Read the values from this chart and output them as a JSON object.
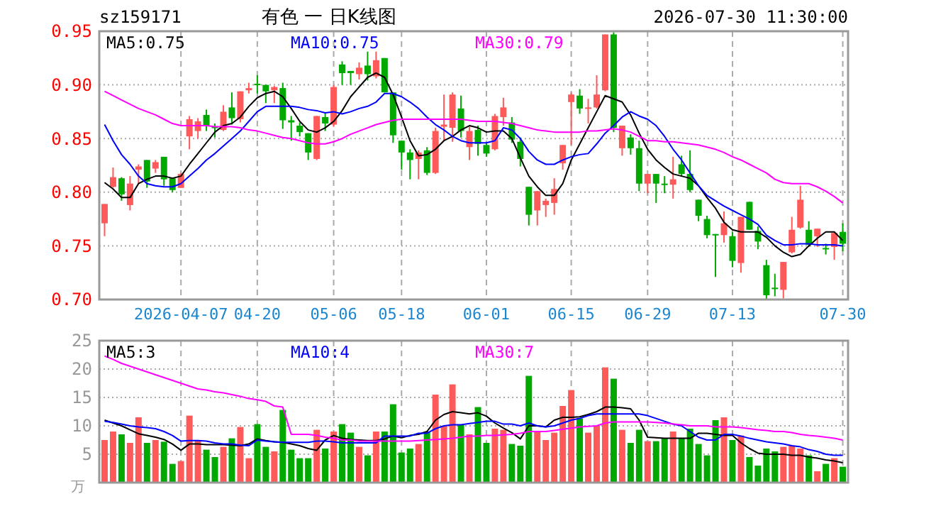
{
  "chart_data": [
    {
      "type": "candlestick",
      "title": "有色 一 日K线图",
      "annotations": [
        "sz159171",
        "2026-07-30 11:30:00"
      ],
      "categories": [
        null,
        null,
        null,
        null,
        null,
        null,
        null,
        null,
        null,
        "2026-04-07",
        null,
        null,
        null,
        null,
        null,
        null,
        null,
        null,
        "04-20",
        null,
        null,
        null,
        null,
        null,
        null,
        null,
        null,
        "05-06",
        null,
        null,
        null,
        null,
        null,
        null,
        null,
        "05-18",
        null,
        null,
        null,
        null,
        null,
        null,
        null,
        null,
        null,
        "06-01",
        null,
        null,
        null,
        null,
        null,
        null,
        null,
        null,
        null,
        "06-15",
        null,
        null,
        null,
        null,
        null,
        null,
        null,
        null,
        "06-29",
        null,
        null,
        null,
        null,
        null,
        null,
        null,
        null,
        null,
        "07-13",
        null,
        null,
        null,
        null,
        null,
        null,
        null,
        null,
        null,
        null,
        null,
        null,
        "07-30"
      ],
      "ohlc": [
        [
          0.771,
          0.789,
          0.759,
          0.789
        ],
        [
          0.805,
          0.823,
          0.804,
          0.814
        ],
        [
          0.813,
          0.814,
          0.792,
          0.798
        ],
        [
          0.788,
          0.815,
          0.783,
          0.808
        ],
        [
          0.821,
          0.826,
          0.808,
          0.824
        ],
        [
          0.83,
          0.83,
          0.804,
          0.81
        ],
        [
          0.822,
          0.83,
          0.818,
          0.828
        ],
        [
          0.833,
          0.833,
          0.806,
          0.812
        ],
        [
          0.813,
          0.813,
          0.8,
          0.802
        ],
        [
          0.804,
          0.818,
          0.804,
          0.817
        ],
        [
          0.852,
          0.871,
          0.84,
          0.868
        ],
        [
          0.857,
          0.869,
          0.85,
          0.866
        ],
        [
          0.872,
          0.877,
          0.857,
          0.862
        ],
        [
          0.861,
          0.864,
          0.851,
          0.86
        ],
        [
          0.858,
          0.881,
          0.857,
          0.875
        ],
        [
          0.879,
          0.893,
          0.863,
          0.869
        ],
        [
          0.868,
          0.894,
          0.865,
          0.894
        ],
        [
          0.895,
          0.902,
          0.892,
          0.897
        ],
        [
          0.901,
          0.909,
          0.892,
          0.9
        ],
        [
          0.9,
          0.9,
          0.883,
          0.894
        ],
        [
          0.895,
          0.899,
          0.883,
          0.898
        ],
        [
          0.897,
          0.902,
          0.859,
          0.867
        ],
        [
          0.867,
          0.871,
          0.848,
          0.865
        ],
        [
          0.862,
          0.865,
          0.852,
          0.856
        ],
        [
          0.855,
          0.855,
          0.83,
          0.837
        ],
        [
          0.831,
          0.871,
          0.83,
          0.871
        ],
        [
          0.87,
          0.874,
          0.857,
          0.864
        ],
        [
          0.863,
          0.9,
          0.861,
          0.898
        ],
        [
          0.919,
          0.922,
          0.9,
          0.911
        ],
        [
          0.913,
          0.913,
          0.9,
          0.911
        ],
        [
          0.91,
          0.921,
          0.905,
          0.916
        ],
        [
          0.918,
          0.931,
          0.904,
          0.91
        ],
        [
          0.908,
          0.931,
          0.906,
          0.923
        ],
        [
          0.925,
          0.925,
          0.893,
          0.893
        ],
        [
          0.893,
          0.893,
          0.846,
          0.853
        ],
        [
          0.848,
          0.848,
          0.821,
          0.837
        ],
        [
          0.837,
          0.84,
          0.812,
          0.83
        ],
        [
          0.831,
          0.839,
          0.812,
          0.837
        ],
        [
          0.839,
          0.842,
          0.816,
          0.818
        ],
        [
          0.818,
          0.86,
          0.817,
          0.857
        ],
        [
          0.861,
          0.891,
          0.848,
          0.863
        ],
        [
          0.86,
          0.893,
          0.847,
          0.891
        ],
        [
          0.878,
          0.89,
          0.851,
          0.857
        ],
        [
          0.842,
          0.861,
          0.83,
          0.857
        ],
        [
          0.858,
          0.862,
          0.834,
          0.845
        ],
        [
          0.844,
          0.846,
          0.833,
          0.836
        ],
        [
          0.84,
          0.873,
          0.839,
          0.871
        ],
        [
          0.87,
          0.888,
          0.862,
          0.879
        ],
        [
          0.865,
          0.87,
          0.846,
          0.849
        ],
        [
          0.847,
          0.851,
          0.824,
          0.831
        ],
        [
          0.805,
          0.805,
          0.769,
          0.779
        ],
        [
          0.783,
          0.801,
          0.769,
          0.801
        ],
        [
          0.788,
          0.794,
          0.777,
          0.792
        ],
        [
          0.79,
          0.813,
          0.779,
          0.803
        ],
        [
          0.827,
          0.844,
          0.821,
          0.844
        ],
        [
          0.884,
          0.893,
          0.844,
          0.891
        ],
        [
          0.89,
          0.896,
          0.873,
          0.878
        ],
        [
          0.878,
          0.887,
          0.864,
          0.879
        ],
        [
          0.879,
          0.909,
          0.878,
          0.891
        ],
        [
          0.895,
          0.947,
          0.894,
          0.947
        ],
        [
          0.947,
          0.949,
          0.856,
          0.86
        ],
        [
          0.841,
          0.862,
          0.834,
          0.862
        ],
        [
          0.851,
          0.854,
          0.835,
          0.841
        ],
        [
          0.841,
          0.848,
          0.801,
          0.808
        ],
        [
          0.808,
          0.817,
          0.799,
          0.817
        ],
        [
          0.817,
          0.817,
          0.79,
          0.808
        ],
        [
          0.808,
          0.815,
          0.799,
          0.807
        ],
        [
          0.807,
          0.833,
          0.794,
          0.812
        ],
        [
          0.826,
          0.834,
          0.815,
          0.817
        ],
        [
          0.817,
          0.839,
          0.8,
          0.802
        ],
        [
          0.793,
          0.793,
          0.773,
          0.778
        ],
        [
          0.775,
          0.778,
          0.757,
          0.76
        ],
        [
          0.761,
          0.761,
          0.721,
          0.76
        ],
        [
          0.76,
          0.782,
          0.753,
          0.771
        ],
        [
          0.759,
          0.763,
          0.73,
          0.736
        ],
        [
          0.734,
          0.777,
          0.725,
          0.777
        ],
        [
          0.791,
          0.791,
          0.765,
          0.765
        ],
        [
          0.764,
          0.768,
          0.747,
          0.754
        ],
        [
          0.732,
          0.737,
          0.7,
          0.704
        ],
        [
          0.711,
          0.724,
          0.703,
          0.71
        ],
        [
          0.709,
          0.735,
          0.701,
          0.735
        ],
        [
          0.744,
          0.777,
          0.743,
          0.765
        ],
        [
          0.767,
          0.806,
          0.766,
          0.793
        ],
        [
          0.765,
          0.773,
          0.749,
          0.751
        ],
        [
          0.759,
          0.766,
          0.749,
          0.766
        ],
        [
          0.748,
          0.752,
          0.742,
          0.747
        ],
        [
          0.749,
          0.762,
          0.737,
          0.762
        ],
        [
          0.763,
          0.771,
          0.745,
          0.752
        ]
      ],
      "series": [
        {
          "name": "MA5:0.75",
          "type": "line",
          "color": "#000000",
          "values": [
            0.809,
            0.803,
            0.795,
            0.795,
            0.808,
            0.812,
            0.815,
            0.815,
            0.813,
            0.815,
            0.826,
            0.836,
            0.846,
            0.856,
            0.862,
            0.864,
            0.87,
            0.88,
            0.888,
            0.892,
            0.894,
            0.889,
            0.878,
            0.866,
            0.858,
            0.856,
            0.86,
            0.866,
            0.876,
            0.889,
            0.898,
            0.907,
            0.911,
            0.907,
            0.891,
            0.87,
            0.848,
            0.834,
            0.835,
            0.84,
            0.848,
            0.852,
            0.858,
            0.862,
            0.86,
            0.856,
            0.857,
            0.857,
            0.85,
            0.832,
            0.815,
            0.805,
            0.797,
            0.797,
            0.808,
            0.83,
            0.845,
            0.86,
            0.875,
            0.89,
            0.887,
            0.884,
            0.872,
            0.855,
            0.84,
            0.83,
            0.823,
            0.817,
            0.815,
            0.813,
            0.806,
            0.795,
            0.785,
            0.772,
            0.765,
            0.763,
            0.763,
            0.763,
            0.758,
            0.75,
            0.744,
            0.74,
            0.742,
            0.75,
            0.757,
            0.763,
            0.763,
            0.755
          ]
        },
        {
          "name": "MA10:0.75",
          "type": "line",
          "color": "#0000ff",
          "values": [
            0.863,
            0.848,
            0.835,
            0.826,
            0.815,
            0.808,
            0.806,
            0.805,
            0.805,
            0.808,
            0.815,
            0.822,
            0.83,
            0.836,
            0.843,
            0.85,
            0.857,
            0.866,
            0.875,
            0.88,
            0.88,
            0.88,
            0.88,
            0.879,
            0.877,
            0.876,
            0.874,
            0.875,
            0.873,
            0.875,
            0.878,
            0.88,
            0.884,
            0.892,
            0.892,
            0.889,
            0.884,
            0.878,
            0.87,
            0.863,
            0.858,
            0.852,
            0.848,
            0.846,
            0.846,
            0.846,
            0.848,
            0.86,
            0.858,
            0.85,
            0.838,
            0.83,
            0.826,
            0.826,
            0.83,
            0.833,
            0.835,
            0.836,
            0.845,
            0.855,
            0.862,
            0.87,
            0.875,
            0.871,
            0.868,
            0.862,
            0.852,
            0.84,
            0.83,
            0.818,
            0.806,
            0.797,
            0.792,
            0.787,
            0.783,
            0.779,
            0.775,
            0.77,
            0.76,
            0.755,
            0.751,
            0.751,
            0.752,
            0.752,
            0.751,
            0.751,
            0.751,
            0.75
          ]
        },
        {
          "name": "MA30:0.79",
          "type": "line",
          "color": "#ff00ff",
          "values": [
            0.894,
            0.89,
            0.886,
            0.882,
            0.878,
            0.875,
            0.872,
            0.868,
            0.864,
            0.862,
            0.862,
            0.862,
            0.862,
            0.861,
            0.861,
            0.861,
            0.86,
            0.858,
            0.857,
            0.855,
            0.853,
            0.851,
            0.85,
            0.848,
            0.846,
            0.845,
            0.845,
            0.847,
            0.85,
            0.854,
            0.857,
            0.86,
            0.863,
            0.865,
            0.867,
            0.868,
            0.868,
            0.868,
            0.868,
            0.868,
            0.868,
            0.868,
            0.868,
            0.867,
            0.866,
            0.866,
            0.866,
            0.865,
            0.864,
            0.862,
            0.86,
            0.858,
            0.857,
            0.856,
            0.856,
            0.856,
            0.856,
            0.857,
            0.857,
            0.858,
            0.859,
            0.858,
            0.856,
            0.852,
            0.848,
            0.848,
            0.847,
            0.847,
            0.846,
            0.845,
            0.844,
            0.842,
            0.84,
            0.837,
            0.833,
            0.83,
            0.826,
            0.822,
            0.818,
            0.812,
            0.809,
            0.808,
            0.808,
            0.808,
            0.805,
            0.801,
            0.796,
            0.79
          ]
        }
      ],
      "ylim": [
        0.7,
        0.95
      ],
      "yticks": [
        {
          "value": 0.7,
          "label": "0.70"
        },
        0.75,
        {
          "value": 0.8,
          "label": "0.80"
        },
        0.85,
        {
          "value": 0.9,
          "label": "0.90"
        },
        0.95
      ],
      "grid": true,
      "legend": "top"
    },
    {
      "type": "bar",
      "ylabel": "万",
      "categories": [
        null,
        null,
        null,
        null,
        null,
        null,
        null,
        null,
        null,
        null,
        null,
        null,
        null,
        null,
        null,
        null,
        null,
        null,
        null,
        null,
        null,
        null,
        null,
        null,
        null,
        null,
        null,
        null,
        null,
        null,
        null,
        null,
        null,
        null,
        null,
        null,
        null,
        null,
        null,
        null,
        null,
        null,
        null,
        null,
        null,
        null,
        null,
        null,
        null,
        null,
        null,
        null,
        null,
        null,
        null,
        null,
        null,
        null,
        null,
        null,
        null,
        null,
        null,
        null,
        null,
        null,
        null,
        null,
        null,
        null,
        null,
        null,
        null,
        null,
        null,
        null,
        null,
        null,
        null,
        null,
        null,
        null,
        null,
        null,
        null,
        null,
        null,
        null
      ],
      "series": [
        {
          "type": "bar",
          "values": [
            7.5,
            9.0,
            8.5,
            7.0,
            11.5,
            7.0,
            7.5,
            7.2,
            3.3,
            3.8,
            11.8,
            7.4,
            5.8,
            4.5,
            6.3,
            7.8,
            9.8,
            4.3,
            10.3,
            6.3,
            5.5,
            12.8,
            5.8,
            4.3,
            4.3,
            9.3,
            6.0,
            9.0,
            10.3,
            8.8,
            6.3,
            4.8,
            9.0,
            9.0,
            13.8,
            5.3,
            6.0,
            6.8,
            9.0,
            15.5,
            10.0,
            17.3,
            10.2,
            8.5,
            13.3,
            7.0,
            9.5,
            9.3,
            6.8,
            6.5,
            18.8,
            9.0,
            7.5,
            8.8,
            13.5,
            16.3,
            11.3,
            8.8,
            10.0,
            20.3,
            18.3,
            9.3,
            7.0,
            9.3,
            7.3,
            7.3,
            7.8,
            9.0,
            7.8,
            9.5,
            6.8,
            4.8,
            11.0,
            11.5,
            7.5,
            8.3,
            4.5,
            3.0,
            6.0,
            5.5,
            6.3,
            6.5,
            6.0,
            4.8,
            2.0,
            3.3,
            4.3,
            2.8
          ],
          "colors": [
            "#ff5a5a",
            "#ff5a5a",
            "#00a800",
            "#ff5a5a",
            "#ff5a5a",
            "#00a800",
            "#ff5a5a",
            "#00a800",
            "#00a800",
            "#ff5a5a",
            "#ff5a5a",
            "#ff5a5a",
            "#00a800",
            "#00a800",
            "#ff5a5a",
            "#00a800",
            "#ff5a5a",
            "#ff5a5a",
            "#00a800",
            "#00a800",
            "#ff5a5a",
            "#00a800",
            "#00a800",
            "#00a800",
            "#00a800",
            "#ff5a5a",
            "#00a800",
            "#ff5a5a",
            "#00a800",
            "#00a800",
            "#ff5a5a",
            "#00a800",
            "#ff5a5a",
            "#00a800",
            "#00a800",
            "#00a800",
            "#00a800",
            "#ff5a5a",
            "#00a800",
            "#ff5a5a",
            "#ff5a5a",
            "#ff5a5a",
            "#00a800",
            "#ff5a5a",
            "#00a800",
            "#00a800",
            "#ff5a5a",
            "#ff5a5a",
            "#00a800",
            "#00a800",
            "#00a800",
            "#ff5a5a",
            "#ff5a5a",
            "#ff5a5a",
            "#ff5a5a",
            "#ff5a5a",
            "#00a800",
            "#ff5a5a",
            "#ff5a5a",
            "#ff5a5a",
            "#00a800",
            "#ff5a5a",
            "#00a800",
            "#00a800",
            "#ff5a5a",
            "#00a800",
            "#00a800",
            "#ff5a5a",
            "#00a800",
            "#00a800",
            "#00a800",
            "#00a800",
            "#00a800",
            "#ff5a5a",
            "#00a800",
            "#ff5a5a",
            "#00a800",
            "#00a800",
            "#00a800",
            "#00a800",
            "#ff5a5a",
            "#ff5a5a",
            "#ff5a5a",
            "#00a800",
            "#ff5a5a",
            "#00a800",
            "#ff5a5a",
            "#00a800"
          ]
        },
        {
          "name": "MA5:3",
          "type": "line",
          "color": "#000000",
          "values": [
            11.0,
            10.5,
            10.0,
            9.3,
            8.6,
            8.3,
            8.0,
            7.6,
            6.8,
            5.7,
            6.8,
            6.8,
            6.7,
            6.7,
            6.7,
            6.6,
            6.5,
            6.8,
            7.7,
            7.4,
            7.2,
            7.1,
            6.8,
            6.5,
            6.0,
            5.7,
            7.5,
            8.3,
            7.8,
            7.6,
            7.5,
            7.4,
            7.4,
            7.7,
            8.2,
            7.9,
            8.3,
            8.5,
            9.0,
            11.0,
            12.0,
            12.5,
            12.3,
            12.1,
            12.3,
            11.7,
            10.5,
            9.6,
            8.8,
            7.7,
            10.0,
            10.0,
            9.8,
            11.0,
            11.5,
            11.5,
            11.6,
            12.0,
            12.5,
            13.3,
            13.3,
            13.2,
            13.0,
            11.0,
            8.0,
            7.9,
            7.8,
            7.8,
            7.8,
            7.8,
            8.7,
            8.7,
            8.5,
            8.3,
            8.3,
            7.0,
            6.0,
            5.2,
            5.0,
            5.0,
            5.0,
            4.8,
            4.8,
            4.5,
            4.3,
            4.0,
            3.8,
            3.5
          ]
        },
        {
          "name": "MA10:4",
          "type": "line",
          "color": "#0000ff",
          "values": [
            10.8,
            10.6,
            10.3,
            10.0,
            9.8,
            9.7,
            9.5,
            9.0,
            8.3,
            7.3,
            7.4,
            7.4,
            7.3,
            7.0,
            6.8,
            6.8,
            6.6,
            6.5,
            7.5,
            7.3,
            7.2,
            7.1,
            7.1,
            7.1,
            7.1,
            7.3,
            7.3,
            7.2,
            7.0,
            7.0,
            7.0,
            7.0,
            7.0,
            8.2,
            8.2,
            8.2,
            8.2,
            8.7,
            8.7,
            9.5,
            10.0,
            10.2,
            10.2,
            10.4,
            10.6,
            10.8,
            10.8,
            10.3,
            10.3,
            10.0,
            10.5,
            10.0,
            9.8,
            10.0,
            10.5,
            11.0,
            11.3,
            11.8,
            12.1,
            12.1,
            12.1,
            12.1,
            12.1,
            12.1,
            11.8,
            11.3,
            10.8,
            10.3,
            10.0,
            9.0,
            8.0,
            7.5,
            7.5,
            8.5,
            8.5,
            8.2,
            7.8,
            7.5,
            7.2,
            7.0,
            6.8,
            6.5,
            6.3,
            5.8,
            5.5,
            5.0,
            4.8,
            4.8
          ]
        },
        {
          "name": "MA30:7",
          "type": "line",
          "color": "#ff00ff",
          "values": [
            22.3,
            21.7,
            21.0,
            20.5,
            20.0,
            19.5,
            19.0,
            18.5,
            18.0,
            17.5,
            17.0,
            16.5,
            16.3,
            16.0,
            15.8,
            15.5,
            15.2,
            14.8,
            14.6,
            14.3,
            13.5,
            13.3,
            8.5,
            8.5,
            8.5,
            8.3,
            8.0,
            7.8,
            7.5,
            7.5,
            7.3,
            7.3,
            7.3,
            7.3,
            7.3,
            7.3,
            7.3,
            7.4,
            7.5,
            7.6,
            7.7,
            7.8,
            8.0,
            8.2,
            8.2,
            8.3,
            8.3,
            8.4,
            8.5,
            8.7,
            9.0,
            9.0,
            9.0,
            9.2,
            9.4,
            9.6,
            9.8,
            9.9,
            10.0,
            10.5,
            10.7,
            10.7,
            10.7,
            10.7,
            10.7,
            10.6,
            10.5,
            10.3,
            10.2,
            10.0,
            10.0,
            10.0,
            9.8,
            9.8,
            9.8,
            9.7,
            9.5,
            9.3,
            9.2,
            9.0,
            9.0,
            8.8,
            8.5,
            8.3,
            8.2,
            8.0,
            7.8,
            7.5
          ]
        }
      ],
      "ylim": [
        0,
        25
      ],
      "yticks": [
        5,
        10,
        15,
        20,
        25
      ],
      "grid": true,
      "legend": "top",
      "tick_labels": "y"
    }
  ]
}
